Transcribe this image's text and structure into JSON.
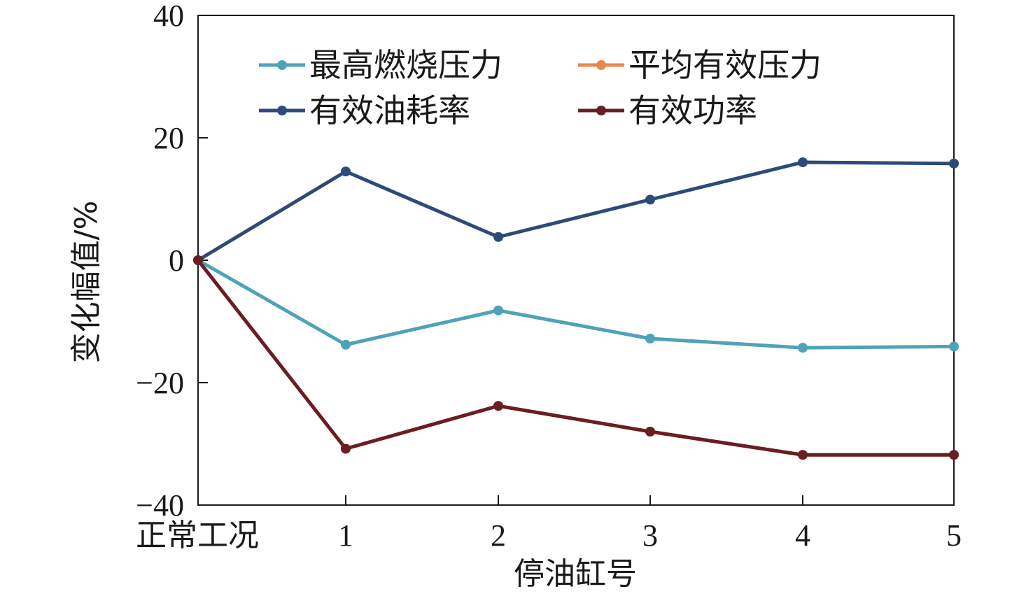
{
  "chart_data": {
    "type": "line",
    "title": "",
    "xlabel": "停油缸号",
    "ylabel": "变化幅值/%",
    "categories": [
      "正常工况",
      "1",
      "2",
      "3",
      "4",
      "5"
    ],
    "yticks": [
      "40",
      "20",
      "0",
      "−20",
      "−40"
    ],
    "ylim": [
      -40,
      40
    ],
    "grid": false,
    "legend_position": "top",
    "series": [
      {
        "name": "最高燃烧压力",
        "color": "#4fa3b8",
        "values": [
          0,
          -13.8,
          -8.2,
          -12.8,
          -14.3,
          -14.1
        ]
      },
      {
        "name": "平均有效压力",
        "color": "#e8894a",
        "values": [
          0,
          -30.8,
          -23.8,
          -28.0,
          -31.8,
          -31.8
        ]
      },
      {
        "name": "有效油耗率",
        "color": "#2e4a7a",
        "values": [
          0,
          14.5,
          3.8,
          9.9,
          16.0,
          15.8
        ]
      },
      {
        "name": "有效功率",
        "color": "#6b1d24",
        "values": [
          0,
          -30.8,
          -23.8,
          -28.0,
          -31.8,
          -31.8
        ]
      }
    ]
  }
}
